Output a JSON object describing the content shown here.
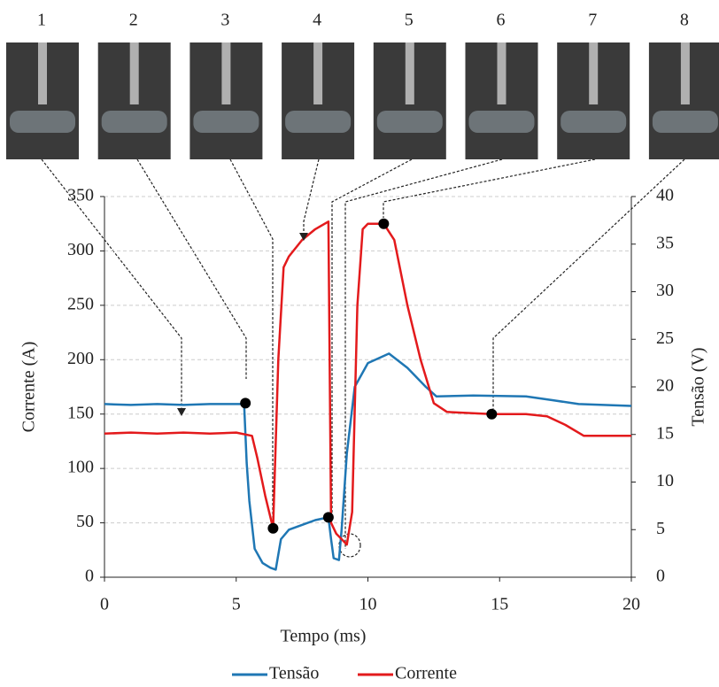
{
  "chart_data": {
    "type": "line",
    "annotations": [
      "1",
      "2",
      "3",
      "4",
      "5",
      "6",
      "7",
      "8"
    ],
    "xlabel": "Tempo (ms)",
    "ylabel": "Corrente (A)",
    "y2label": "Tensão (V)",
    "xlim": [
      0,
      20
    ],
    "xticks": [
      0,
      5,
      10,
      15,
      20
    ],
    "ylim": [
      0,
      350
    ],
    "yticks": [
      0,
      50,
      100,
      150,
      200,
      250,
      300,
      350
    ],
    "y2lim": [
      0,
      40
    ],
    "y2ticks": [
      0,
      5,
      10,
      15,
      20,
      25,
      30,
      35,
      40
    ],
    "grid": true,
    "legend": "bottom",
    "series": [
      {
        "name": "Tensão",
        "color": "#1f77b4",
        "axis": "y2",
        "x": [
          0,
          1,
          2,
          3,
          4,
          5,
          5.3,
          5.4,
          5.5,
          5.7,
          6.0,
          6.3,
          6.5,
          6.7,
          7.0,
          7.5,
          8.0,
          8.5,
          8.6,
          8.7,
          8.9,
          9.0,
          9.2,
          9.5,
          10.0,
          10.8,
          11.5,
          12.2,
          12.6,
          14,
          16,
          17,
          18,
          20
        ],
        "values": [
          18.2,
          18.1,
          18.2,
          18.1,
          18.2,
          18.2,
          18.2,
          12,
          8,
          3,
          1.5,
          1,
          0.8,
          4,
          5,
          5.5,
          6,
          6.3,
          4,
          2,
          1.8,
          5,
          13,
          20,
          22.5,
          23.5,
          22,
          20,
          19,
          19.1,
          19,
          18.6,
          18.2,
          18
        ]
      },
      {
        "name": "Corrente",
        "color": "#e31a1c",
        "x": [
          0,
          1,
          2,
          3,
          4,
          5,
          5.6,
          5.8,
          6.1,
          6.4,
          6.6,
          6.8,
          7.0,
          7.5,
          8.0,
          8.5,
          8.6,
          8.8,
          9.0,
          9.2,
          9.4,
          9.6,
          9.8,
          10.0,
          10.6,
          11.0,
          11.5,
          12.0,
          12.5,
          13,
          14.7,
          16,
          16.8,
          17.5,
          18.2,
          20
        ],
        "values": [
          132,
          133,
          132,
          133,
          132,
          133,
          130,
          110,
          75,
          45,
          200,
          285,
          295,
          310,
          320,
          327,
          50,
          40,
          35,
          30,
          60,
          250,
          320,
          325,
          325,
          310,
          250,
          200,
          160,
          152,
          150,
          150,
          148,
          140,
          130,
          130
        ]
      }
    ],
    "markers": {
      "x": [
        5.35,
        6.4,
        8.5,
        10.6,
        14.7
      ],
      "y": [
        160,
        45,
        55,
        325,
        150
      ]
    }
  }
}
